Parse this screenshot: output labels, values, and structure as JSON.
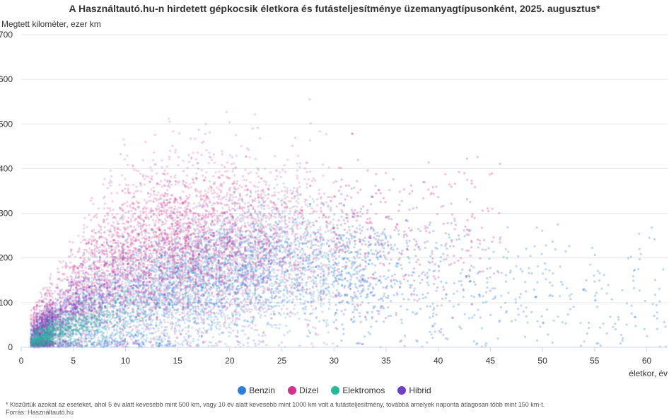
{
  "chart_data": {
    "type": "scatter",
    "title": "A Használtautó.hu-n hirdetett gépkocsik életkora és futásteljesítménye üzemanyagtípusonként, 2025. augusztus*",
    "xlabel": "életkor, év",
    "ylabel": "Megtett kilométer, ezer km",
    "xlim": [
      0,
      62
    ],
    "ylim": [
      0,
      700
    ],
    "x_ticks": [
      0,
      5,
      10,
      15,
      20,
      25,
      30,
      35,
      40,
      45,
      50,
      55,
      60
    ],
    "y_ticks": [
      0,
      100,
      200,
      300,
      400,
      500,
      600,
      700
    ],
    "grid": "horizontal",
    "legend_position": "bottom",
    "series": [
      {
        "name": "Benzin",
        "color": "#2f7ed8",
        "distribution": {
          "x_range": [
            1,
            62
          ],
          "x_peak": 17,
          "y_center": [
            [
              2,
              15
            ],
            [
              10,
              100
            ],
            [
              17,
              150
            ],
            [
              25,
              190
            ],
            [
              40,
              150
            ],
            [
              60,
              110
            ]
          ],
          "y_spread": 70
        }
      },
      {
        "name": "Dízel",
        "color": "#d0328c",
        "distribution": {
          "x_range": [
            1,
            46
          ],
          "x_peak": 14,
          "y_center": [
            [
              2,
              40
            ],
            [
              8,
              180
            ],
            [
              14,
              230
            ],
            [
              20,
              240
            ],
            [
              30,
              250
            ],
            [
              46,
              250
            ]
          ],
          "y_spread": 90
        }
      },
      {
        "name": "Elektromos",
        "color": "#23b99a",
        "distribution": {
          "x_range": [
            1,
            12
          ],
          "x_peak": 3,
          "y_center": [
            [
              1,
              15
            ],
            [
              4,
              40
            ],
            [
              8,
              70
            ],
            [
              12,
              90
            ]
          ],
          "y_spread": 30
        }
      },
      {
        "name": "Hibrid",
        "color": "#6f3fc7",
        "distribution": {
          "x_range": [
            1,
            25
          ],
          "x_peak": 4,
          "y_center": [
            [
              1,
              20
            ],
            [
              5,
              90
            ],
            [
              10,
              140
            ],
            [
              25,
              180
            ]
          ],
          "y_spread": 50
        }
      }
    ]
  },
  "footnote": {
    "line1": "* Kiszűrtük azokat az eseteket, ahol 5 év alatt kevesebb mint 500 km, vagy 10 év alatt kevesebb mint 1000 km volt a futásteljesítmény, továbbá amelyek naponta átlagosan több mint 150 km-t.",
    "line2": "Forrás: Használtautó.hu"
  }
}
